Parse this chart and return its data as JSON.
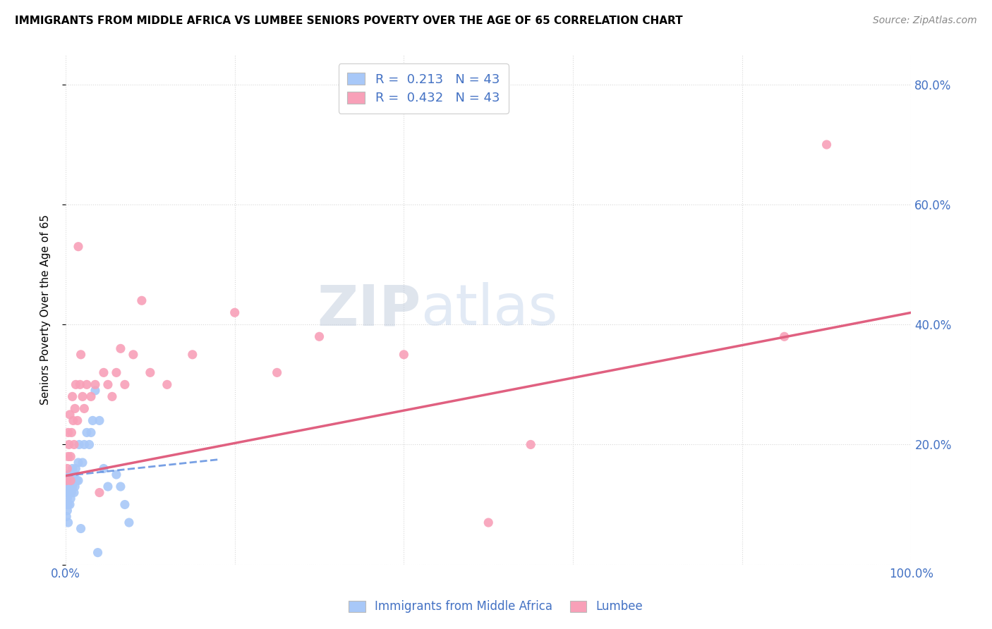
{
  "title": "IMMIGRANTS FROM MIDDLE AFRICA VS LUMBEE SENIORS POVERTY OVER THE AGE OF 65 CORRELATION CHART",
  "source": "Source: ZipAtlas.com",
  "ylabel": "Seniors Poverty Over the Age of 65",
  "xlim": [
    0.0,
    1.0
  ],
  "ylim": [
    0.0,
    0.85
  ],
  "xticks": [
    0.0,
    0.2,
    0.4,
    0.6,
    0.8,
    1.0
  ],
  "xticklabels": [
    "0.0%",
    "",
    "",
    "",
    "",
    "100.0%"
  ],
  "yticks": [
    0.0,
    0.2,
    0.4,
    0.6,
    0.8
  ],
  "yticklabels_right": [
    "",
    "20.0%",
    "40.0%",
    "60.0%",
    "80.0%"
  ],
  "watermark_zip": "ZIP",
  "watermark_atlas": "atlas",
  "legend_label1": "Immigrants from Middle Africa",
  "legend_label2": "Lumbee",
  "R1": "0.213",
  "R2": "0.432",
  "N1": "43",
  "N2": "43",
  "color_blue": "#a8c8f8",
  "color_pink": "#f8a0b8",
  "color_line_blue": "#6090e0",
  "color_line_pink": "#e06080",
  "color_text": "#4472c4",
  "blue_line_x0": 0.0,
  "blue_line_y0": 0.148,
  "blue_line_x1": 0.18,
  "blue_line_y1": 0.175,
  "pink_line_x0": 0.0,
  "pink_line_y0": 0.148,
  "pink_line_x1": 1.0,
  "pink_line_y1": 0.42,
  "scatter_blue_x": [
    0.001,
    0.001,
    0.001,
    0.002,
    0.002,
    0.002,
    0.003,
    0.003,
    0.003,
    0.004,
    0.004,
    0.005,
    0.005,
    0.006,
    0.006,
    0.007,
    0.008,
    0.008,
    0.009,
    0.01,
    0.01,
    0.011,
    0.012,
    0.013,
    0.015,
    0.015,
    0.016,
    0.018,
    0.02,
    0.022,
    0.025,
    0.028,
    0.03,
    0.032,
    0.035,
    0.038,
    0.04,
    0.045,
    0.05,
    0.06,
    0.065,
    0.07,
    0.075
  ],
  "scatter_blue_y": [
    0.12,
    0.1,
    0.08,
    0.14,
    0.11,
    0.09,
    0.13,
    0.1,
    0.07,
    0.15,
    0.12,
    0.13,
    0.1,
    0.14,
    0.11,
    0.12,
    0.16,
    0.13,
    0.14,
    0.15,
    0.12,
    0.13,
    0.16,
    0.14,
    0.17,
    0.14,
    0.2,
    0.06,
    0.17,
    0.2,
    0.22,
    0.2,
    0.22,
    0.24,
    0.29,
    0.02,
    0.24,
    0.16,
    0.13,
    0.15,
    0.13,
    0.1,
    0.07
  ],
  "scatter_pink_x": [
    0.001,
    0.002,
    0.003,
    0.003,
    0.004,
    0.005,
    0.006,
    0.006,
    0.007,
    0.008,
    0.009,
    0.01,
    0.011,
    0.012,
    0.014,
    0.015,
    0.017,
    0.018,
    0.02,
    0.022,
    0.025,
    0.03,
    0.035,
    0.04,
    0.045,
    0.05,
    0.055,
    0.06,
    0.065,
    0.07,
    0.08,
    0.09,
    0.1,
    0.12,
    0.15,
    0.2,
    0.25,
    0.3,
    0.4,
    0.5,
    0.55,
    0.85,
    0.9
  ],
  "scatter_pink_y": [
    0.14,
    0.16,
    0.18,
    0.22,
    0.2,
    0.25,
    0.18,
    0.14,
    0.22,
    0.28,
    0.24,
    0.2,
    0.26,
    0.3,
    0.24,
    0.53,
    0.3,
    0.35,
    0.28,
    0.26,
    0.3,
    0.28,
    0.3,
    0.12,
    0.32,
    0.3,
    0.28,
    0.32,
    0.36,
    0.3,
    0.35,
    0.44,
    0.32,
    0.3,
    0.35,
    0.42,
    0.32,
    0.38,
    0.35,
    0.07,
    0.2,
    0.38,
    0.7
  ]
}
